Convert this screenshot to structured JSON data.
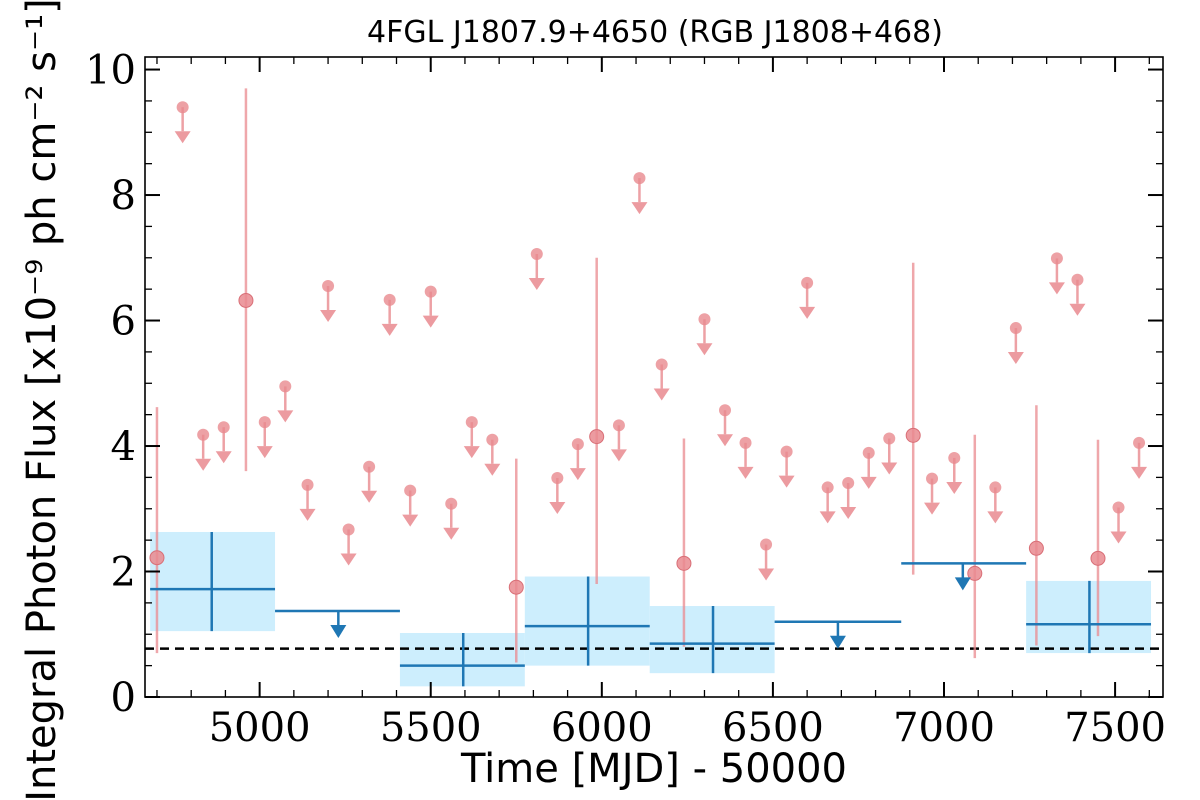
{
  "chart_data": {
    "type": "scatter",
    "title": "4FGL J1807.9+4650 (RGB J1808+468)",
    "xlabel": "Time [MJD] - 50000",
    "ylabel": "Integral Photon Flux [x10⁻⁹ ph cm⁻² s⁻¹]",
    "xlim": [
      4665,
      7640
    ],
    "ylim": [
      0,
      10.2
    ],
    "x_ticks": [
      5000,
      5500,
      6000,
      6500,
      7000,
      7500
    ],
    "x_tick_labels": [
      "5000",
      "5500",
      "6000",
      "6500",
      "7000",
      "7500"
    ],
    "y_ticks": [
      0,
      2,
      4,
      6,
      8,
      10
    ],
    "y_tick_labels": [
      "0",
      "2",
      "4",
      "6",
      "8",
      "10"
    ],
    "reference_level": 0.77,
    "colors": {
      "short_bins": "#e9898f",
      "long_bins": "#1f77b4",
      "long_bin_band": "#cdeefd",
      "reference_line": "#000000"
    },
    "series": [
      {
        "points": [
          {
            "x": 4700,
            "y": 2.22,
            "ylo": 0.7,
            "yhi": 4.62
          },
          {
            "x": 4960,
            "y": 6.32,
            "ylo": 3.6,
            "yhi": 9.7
          },
          {
            "x": 5750,
            "y": 1.75,
            "ylo": 0.55,
            "yhi": 3.8
          },
          {
            "x": 5985,
            "y": 4.15,
            "ylo": 1.8,
            "yhi": 7.0
          },
          {
            "x": 6240,
            "y": 2.13,
            "ylo": 0.8,
            "yhi": 4.12
          },
          {
            "x": 6910,
            "y": 4.17,
            "ylo": 1.95,
            "yhi": 6.92
          },
          {
            "x": 7090,
            "y": 1.97,
            "ylo": 0.62,
            "yhi": 4.18
          },
          {
            "x": 7270,
            "y": 2.37,
            "ylo": 0.82,
            "yhi": 4.65
          },
          {
            "x": 7450,
            "y": 2.21,
            "ylo": 0.97,
            "yhi": 4.1
          }
        ],
        "upper_limits": [
          {
            "x": 4775,
            "y": 9.4
          },
          {
            "x": 4835,
            "y": 4.18
          },
          {
            "x": 4895,
            "y": 4.3
          },
          {
            "x": 5015,
            "y": 4.38
          },
          {
            "x": 5075,
            "y": 4.95
          },
          {
            "x": 5140,
            "y": 3.38
          },
          {
            "x": 5200,
            "y": 6.55
          },
          {
            "x": 5260,
            "y": 2.67
          },
          {
            "x": 5320,
            "y": 3.67
          },
          {
            "x": 5380,
            "y": 6.33
          },
          {
            "x": 5440,
            "y": 3.29
          },
          {
            "x": 5500,
            "y": 6.46
          },
          {
            "x": 5560,
            "y": 3.08
          },
          {
            "x": 5620,
            "y": 4.38
          },
          {
            "x": 5680,
            "y": 4.1
          },
          {
            "x": 5810,
            "y": 7.06
          },
          {
            "x": 5870,
            "y": 3.49
          },
          {
            "x": 5930,
            "y": 4.03
          },
          {
            "x": 6050,
            "y": 4.33
          },
          {
            "x": 6110,
            "y": 8.27
          },
          {
            "x": 6175,
            "y": 5.3
          },
          {
            "x": 6300,
            "y": 6.02
          },
          {
            "x": 6360,
            "y": 4.57
          },
          {
            "x": 6420,
            "y": 4.05
          },
          {
            "x": 6480,
            "y": 2.43
          },
          {
            "x": 6540,
            "y": 3.91
          },
          {
            "x": 6600,
            "y": 6.6
          },
          {
            "x": 6660,
            "y": 3.34
          },
          {
            "x": 6720,
            "y": 3.41
          },
          {
            "x": 6780,
            "y": 3.89
          },
          {
            "x": 6840,
            "y": 4.12
          },
          {
            "x": 6965,
            "y": 3.48
          },
          {
            "x": 7030,
            "y": 3.81
          },
          {
            "x": 7150,
            "y": 3.34
          },
          {
            "x": 7210,
            "y": 5.88
          },
          {
            "x": 7330,
            "y": 6.99
          },
          {
            "x": 7390,
            "y": 6.65
          },
          {
            "x": 7510,
            "y": 3.02
          },
          {
            "x": 7570,
            "y": 4.05
          }
        ]
      },
      {
        "points": [
          {
            "x": 4860,
            "xlo": 4680,
            "xhi": 5045,
            "y": 1.72,
            "ylo": 1.05,
            "yhi": 2.63
          },
          {
            "x": 5595,
            "xlo": 5410,
            "xhi": 5775,
            "y": 0.5,
            "ylo": 0.17,
            "yhi": 1.02
          },
          {
            "x": 5960,
            "xlo": 5775,
            "xhi": 6140,
            "y": 1.13,
            "ylo": 0.5,
            "yhi": 1.92
          },
          {
            "x": 6325,
            "xlo": 6140,
            "xhi": 6505,
            "y": 0.85,
            "ylo": 0.38,
            "yhi": 1.45
          },
          {
            "x": 7425,
            "xlo": 7240,
            "xhi": 7605,
            "y": 1.16,
            "ylo": 0.7,
            "yhi": 1.85
          }
        ],
        "upper_limits": [
          {
            "x": 5230,
            "xlo": 5045,
            "xhi": 5410,
            "y": 1.37
          },
          {
            "x": 6690,
            "xlo": 6505,
            "xhi": 6875,
            "y": 1.2
          },
          {
            "x": 7055,
            "xlo": 6875,
            "xhi": 7240,
            "y": 2.13
          }
        ]
      }
    ]
  }
}
